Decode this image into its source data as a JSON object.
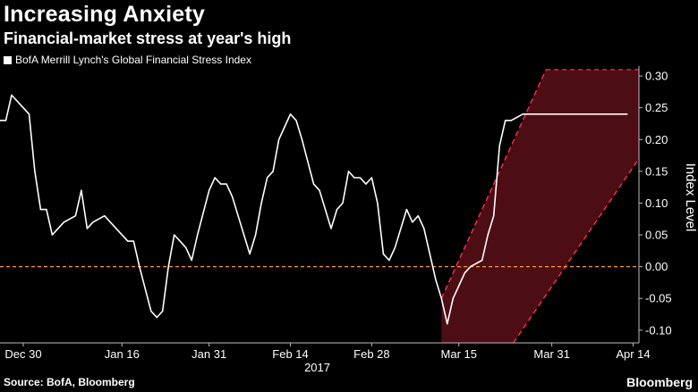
{
  "header": {
    "title": "Increasing Anxiety",
    "subtitle": "Financial-market stress at year's high"
  },
  "footer": {
    "source": "Source: BofA, Bloomberg",
    "brand": "Bloomberg"
  },
  "colors": {
    "background": "#000000",
    "line": "#ffffff",
    "zero_line": "#ff9a1f",
    "band_stroke": "#ff2f4b",
    "band_fill": "#5a0f18",
    "axis_text": "#ffffff"
  },
  "chart_data": {
    "type": "line",
    "title": "Increasing Anxiety",
    "subtitle": "Financial-market stress at year's high",
    "ylabel": "Index Level",
    "xlabel": "",
    "year_label": "2017",
    "ylim": [
      -0.12,
      0.31
    ],
    "yticks": [
      "0.30",
      "0.25",
      "0.20",
      "0.15",
      "0.10",
      "0.05",
      "0.00",
      "-0.05",
      "-0.10"
    ],
    "ytick_values": [
      0.3,
      0.25,
      0.2,
      0.15,
      0.1,
      0.05,
      0.0,
      -0.05,
      -0.1
    ],
    "xlim_days": [
      -4,
      106
    ],
    "xticks": [
      {
        "label": "Dec 30",
        "day": 0
      },
      {
        "label": "Jan 16",
        "day": 17
      },
      {
        "label": "Jan 31",
        "day": 32
      },
      {
        "label": "Feb 14",
        "day": 46
      },
      {
        "label": "Feb 28",
        "day": 60
      },
      {
        "label": "Mar 15",
        "day": 75
      },
      {
        "label": "Mar 31",
        "day": 91
      },
      {
        "label": "Apr 14",
        "day": 105
      }
    ],
    "legend": [
      "BofA Merrill Lynch's Global Financial Stress Index"
    ],
    "reference_line": 0.0,
    "series": [
      {
        "name": "BofA Merrill Lynch's Global Financial Stress Index",
        "x": [
          -4,
          -3,
          -2,
          0,
          1,
          2,
          3,
          4,
          5,
          6,
          7,
          9,
          10,
          11,
          12,
          14,
          15,
          16,
          18,
          19,
          20,
          22,
          23,
          24,
          25,
          26,
          27,
          28,
          29,
          30,
          32,
          33,
          34,
          35,
          36,
          37,
          39,
          40,
          41,
          42,
          43,
          44,
          45,
          46,
          47,
          48,
          50,
          51,
          53,
          54,
          55,
          56,
          57,
          58,
          59,
          60,
          61,
          62,
          63,
          64,
          66,
          67,
          68,
          69,
          71,
          72,
          73,
          74,
          75,
          76,
          77,
          79,
          80,
          81,
          82,
          83,
          84,
          86,
          87,
          88,
          89,
          90,
          91,
          93,
          94,
          95,
          96,
          97,
          98,
          100,
          101,
          102,
          103,
          104
        ],
        "values": [
          0.23,
          0.23,
          0.27,
          0.25,
          0.24,
          0.15,
          0.09,
          0.09,
          0.05,
          0.06,
          0.07,
          0.08,
          0.12,
          0.06,
          0.07,
          0.08,
          0.07,
          0.06,
          0.04,
          0.04,
          0.0,
          -0.07,
          -0.08,
          -0.07,
          0.0,
          0.05,
          0.04,
          0.03,
          0.01,
          0.05,
          0.12,
          0.14,
          0.13,
          0.13,
          0.11,
          0.08,
          0.02,
          0.05,
          0.1,
          0.14,
          0.15,
          0.2,
          0.22,
          0.24,
          0.23,
          0.2,
          0.13,
          0.12,
          0.06,
          0.09,
          0.1,
          0.15,
          0.14,
          0.14,
          0.13,
          0.14,
          0.1,
          0.02,
          0.01,
          0.03,
          0.09,
          0.07,
          0.08,
          0.06,
          -0.02,
          -0.05,
          -0.09,
          -0.05,
          -0.03,
          -0.01,
          0.0,
          0.01,
          0.05,
          0.08,
          0.19,
          0.23,
          0.23,
          0.24,
          0.24,
          0.24,
          0.24,
          0.24,
          0.24,
          0.24,
          0.24,
          0.24,
          0.24,
          0.24,
          0.24,
          0.24,
          0.24,
          0.24,
          0.24,
          0.24
        ]
      }
    ],
    "annotations": [
      {
        "type": "trend_channel",
        "lower_line": [
          [
            84,
            -0.125
          ],
          [
            106,
            0.17
          ]
        ],
        "upper_line": [
          [
            72,
            -0.05
          ],
          [
            90,
            0.31
          ]
        ],
        "start_day": 72
      }
    ]
  }
}
